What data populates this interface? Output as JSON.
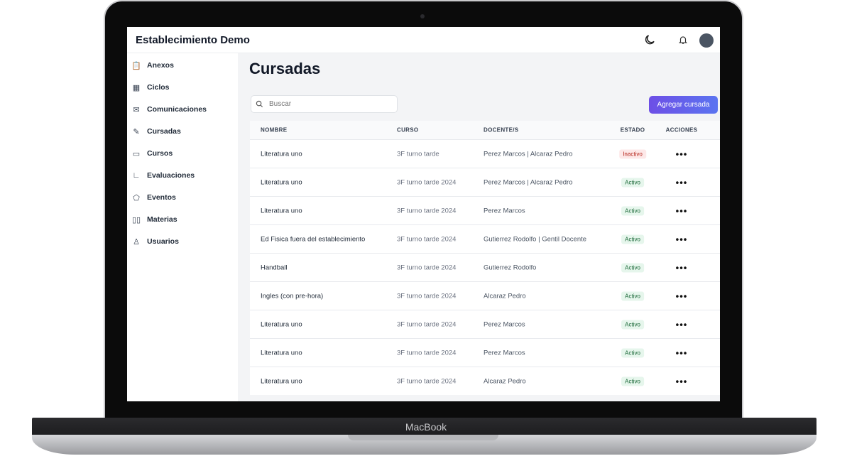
{
  "device": {
    "label": "MacBook"
  },
  "header": {
    "title": "Establecimiento Demo",
    "icons": [
      "moon-icon",
      "bell-icon",
      "avatar"
    ]
  },
  "sidebar": {
    "items": [
      {
        "label": "Anexos",
        "icon": "clipboard-icon"
      },
      {
        "label": "Ciclos",
        "icon": "building-icon"
      },
      {
        "label": "Comunicaciones",
        "icon": "mail-icon"
      },
      {
        "label": "Cursadas",
        "icon": "pencil-icon"
      },
      {
        "label": "Cursos",
        "icon": "folder-icon"
      },
      {
        "label": "Evaluaciones",
        "icon": "chart-icon"
      },
      {
        "label": "Eventos",
        "icon": "tag-icon"
      },
      {
        "label": "Materias",
        "icon": "book-icon"
      },
      {
        "label": "Usuarios",
        "icon": "user-icon"
      }
    ]
  },
  "main": {
    "title": "Cursadas",
    "search_placeholder": "Buscar",
    "add_label": "Agregar cursada",
    "columns": [
      "NOMBRE",
      "CURSO",
      "DOCENTE/S",
      "ESTADO",
      "ACCIONES"
    ],
    "rows": [
      {
        "nombre": "Literatura uno",
        "curso": "3F turno tarde",
        "docentes": "Perez Marcos | Alcaraz Pedro",
        "estado": "Inactivo"
      },
      {
        "nombre": "Literatura uno",
        "curso": "3F turno tarde 2024",
        "docentes": "Perez Marcos | Alcaraz Pedro",
        "estado": "Activo"
      },
      {
        "nombre": "Literatura uno",
        "curso": "3F turno tarde 2024",
        "docentes": "Perez Marcos",
        "estado": "Activo"
      },
      {
        "nombre": "Ed Fisica fuera del establecimiento",
        "curso": "3F turno tarde 2024",
        "docentes": "Gutierrez Rodolfo | Gentil Docente",
        "estado": "Activo"
      },
      {
        "nombre": "Handball",
        "curso": "3F turno tarde 2024",
        "docentes": "Gutierrez Rodolfo",
        "estado": "Activo"
      },
      {
        "nombre": "Ingles (con pre-hora)",
        "curso": "3F turno tarde 2024",
        "docentes": "Alcaraz Pedro",
        "estado": "Activo"
      },
      {
        "nombre": "Literatura uno",
        "curso": "3F turno tarde 2024",
        "docentes": "Perez Marcos",
        "estado": "Activo"
      },
      {
        "nombre": "Literatura uno",
        "curso": "3F turno tarde 2024",
        "docentes": "Perez Marcos",
        "estado": "Activo"
      },
      {
        "nombre": "Literatura uno",
        "curso": "3F turno tarde 2024",
        "docentes": "Alcaraz Pedro",
        "estado": "Activo"
      }
    ],
    "actions_glyph": "•••"
  },
  "colors": {
    "accent": "#6d4fe6",
    "active_bg": "#e6f6ec",
    "inactive_bg": "#fde8e8"
  }
}
